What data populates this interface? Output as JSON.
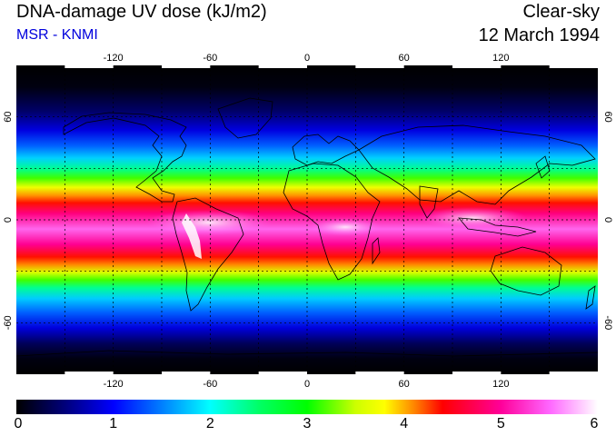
{
  "header": {
    "title": "DNA-damage UV dose (kJ/m2)",
    "subtitle": "MSR - KNMI",
    "condition": "Clear-sky",
    "date": "12 March 1994",
    "subtitle_color": "#0000dd"
  },
  "map": {
    "lon_ticks": [
      "-120",
      "-60",
      "0",
      "60",
      "120"
    ],
    "lat_ticks": [
      "60",
      "0",
      "-60"
    ],
    "gridline_lons": [
      -150,
      -120,
      -90,
      -60,
      -30,
      0,
      30,
      60,
      90,
      120,
      150
    ],
    "gridline_lats": [
      -60,
      -30,
      0,
      30,
      60
    ]
  },
  "colorbar": {
    "labels": [
      "0",
      "1",
      "2",
      "3",
      "4",
      "5",
      "6"
    ],
    "min": 0,
    "max": 6,
    "stops": [
      {
        "value": 0.0,
        "color": "#000000"
      },
      {
        "value": 0.5,
        "color": "#00007a"
      },
      {
        "value": 1.0,
        "color": "#0000ff"
      },
      {
        "value": 1.6,
        "color": "#0099ff"
      },
      {
        "value": 2.0,
        "color": "#00ffff"
      },
      {
        "value": 2.5,
        "color": "#00ff66"
      },
      {
        "value": 3.0,
        "color": "#00ff00"
      },
      {
        "value": 3.5,
        "color": "#ccff00"
      },
      {
        "value": 3.8,
        "color": "#ffff00"
      },
      {
        "value": 4.1,
        "color": "#ff8800"
      },
      {
        "value": 4.4,
        "color": "#ff0000"
      },
      {
        "value": 5.0,
        "color": "#ff0099"
      },
      {
        "value": 5.5,
        "color": "#ff66ff"
      },
      {
        "value": 6.0,
        "color": "#ffffff"
      }
    ]
  }
}
